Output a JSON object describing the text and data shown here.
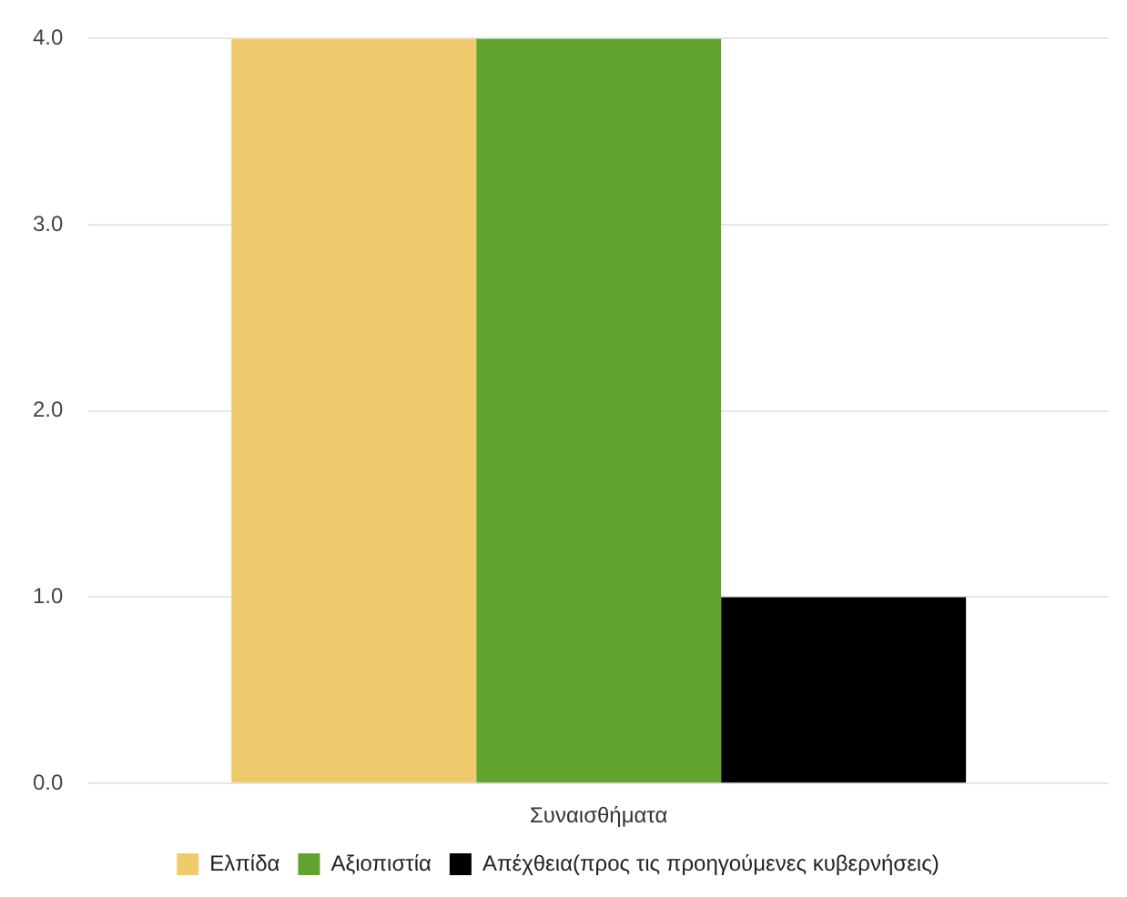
{
  "chart_data": {
    "type": "bar",
    "categories": [
      "Συναισθήματα"
    ],
    "series": [
      {
        "name": "Ελπίδα",
        "color": "#f0cb6e",
        "values": [
          4
        ]
      },
      {
        "name": "Αξιοπιστία",
        "color": "#62a330",
        "values": [
          4
        ]
      },
      {
        "name": "Απέχθεια(προς τις προηγούμενες κυβερνήσεις)",
        "color": "#000000",
        "values": [
          1
        ]
      }
    ],
    "ylim": [
      0,
      4
    ],
    "yticks": [
      {
        "value": 0,
        "label": "0.0"
      },
      {
        "value": 1,
        "label": "1.0"
      },
      {
        "value": 2,
        "label": "2.0"
      },
      {
        "value": 3,
        "label": "3.0"
      },
      {
        "value": 4,
        "label": "4.0"
      }
    ],
    "grid": "y",
    "legend": "bottom"
  }
}
